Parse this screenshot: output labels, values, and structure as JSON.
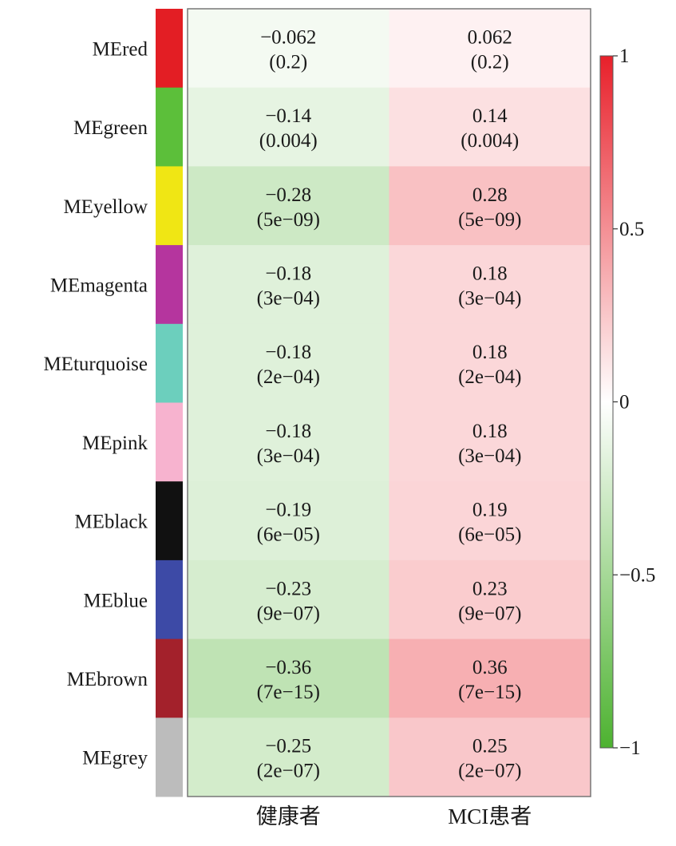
{
  "chart_data": {
    "type": "heatmap",
    "columns": [
      "健康者",
      "MCI患者"
    ],
    "rows": [
      {
        "label": "MEred",
        "module_color": "#e31e24",
        "values": [
          -0.062,
          0.062
        ],
        "pvalues": [
          "(0.2)",
          "(0.2)"
        ],
        "display": [
          "−0.062",
          "0.062"
        ]
      },
      {
        "label": "MEgreen",
        "module_color": "#5cbf3a",
        "values": [
          -0.14,
          0.14
        ],
        "pvalues": [
          "(0.004)",
          "(0.004)"
        ],
        "display": [
          "−0.14",
          "0.14"
        ]
      },
      {
        "label": "MEyellow",
        "module_color": "#f0e614",
        "values": [
          -0.28,
          0.28
        ],
        "pvalues": [
          "(5e−09)",
          "(5e−09)"
        ],
        "display": [
          "−0.28",
          "0.28"
        ]
      },
      {
        "label": "MEmagenta",
        "module_color": "#b5359e",
        "values": [
          -0.18,
          0.18
        ],
        "pvalues": [
          "(3e−04)",
          "(3e−04)"
        ],
        "display": [
          "−0.18",
          "0.18"
        ]
      },
      {
        "label": "MEturquoise",
        "module_color": "#6ccfbd",
        "values": [
          -0.18,
          0.18
        ],
        "pvalues": [
          "(2e−04)",
          "(2e−04)"
        ],
        "display": [
          "−0.18",
          "0.18"
        ]
      },
      {
        "label": "MEpink",
        "module_color": "#f7b3cf",
        "values": [
          -0.18,
          0.18
        ],
        "pvalues": [
          "(3e−04)",
          "(3e−04)"
        ],
        "display": [
          "−0.18",
          "0.18"
        ]
      },
      {
        "label": "MEblack",
        "module_color": "#111111",
        "values": [
          -0.19,
          0.19
        ],
        "pvalues": [
          "(6e−05)",
          "(6e−05)"
        ],
        "display": [
          "−0.19",
          "0.19"
        ]
      },
      {
        "label": "MEblue",
        "module_color": "#3d4aa6",
        "values": [
          -0.23,
          0.23
        ],
        "pvalues": [
          "(9e−07)",
          "(9e−07)"
        ],
        "display": [
          "−0.23",
          "0.23"
        ]
      },
      {
        "label": "MEbrown",
        "module_color": "#a3212b",
        "values": [
          -0.36,
          0.36
        ],
        "pvalues": [
          "(7e−15)",
          "(7e−15)"
        ],
        "display": [
          "−0.36",
          "0.36"
        ]
      },
      {
        "label": "MEgrey",
        "module_color": "#bcbcbc",
        "values": [
          -0.25,
          0.25
        ],
        "pvalues": [
          "(2e−07)",
          "(2e−07)"
        ],
        "display": [
          "−0.25",
          "0.25"
        ]
      }
    ],
    "colorbar": {
      "range": [
        -1,
        1
      ],
      "ticks": [
        1,
        0.5,
        0,
        -0.5,
        -1
      ],
      "tick_labels": [
        "1",
        "0.5",
        "0",
        "−0.5",
        "−1"
      ],
      "low_color": "#4db230",
      "mid_color": "#ffffff",
      "high_color": "#e8202a"
    }
  }
}
